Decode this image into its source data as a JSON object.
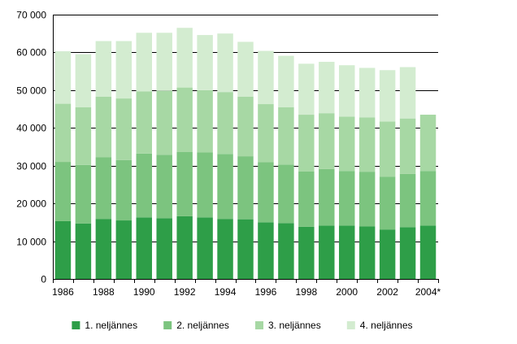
{
  "chart_data": {
    "type": "bar",
    "stacked": true,
    "title": "",
    "xlabel": "",
    "ylabel": "",
    "ylim": [
      0,
      70000
    ],
    "yticks": [
      0,
      10000,
      20000,
      30000,
      40000,
      50000,
      60000,
      70000
    ],
    "ytick_labels": [
      "0",
      "10 000",
      "20 000",
      "30 000",
      "40 000",
      "50 000",
      "60 000",
      "70 000"
    ],
    "grid": "horizontal",
    "legend_position": "bottom",
    "categories": [
      "1986",
      "1987",
      "1988",
      "1989",
      "1990",
      "1991",
      "1992",
      "1993",
      "1994",
      "1995",
      "1996",
      "1997",
      "1998",
      "1999",
      "2000",
      "2001",
      "2002",
      "2003",
      "2004*"
    ],
    "xtick_labels": [
      "1986",
      "",
      "1988",
      "",
      "1990",
      "",
      "1992",
      "",
      "1994",
      "",
      "1996",
      "",
      "1998",
      "",
      "2000",
      "",
      "2002",
      "",
      "2004*"
    ],
    "series": [
      {
        "name": "1. neljännes",
        "color": "#2e9e48",
        "values": [
          15300,
          14700,
          15900,
          15500,
          16300,
          16100,
          16600,
          16300,
          15900,
          15800,
          15000,
          14800,
          13800,
          14100,
          14100,
          13900,
          13100,
          13700,
          14100
        ]
      },
      {
        "name": "2. neljännes",
        "color": "#7cc47f",
        "values": [
          15700,
          15500,
          16300,
          16000,
          16900,
          16800,
          17000,
          17200,
          17200,
          16700,
          15900,
          15500,
          14700,
          15000,
          14500,
          14500,
          14000,
          14100,
          14500
        ]
      },
      {
        "name": "3. neljännes",
        "color": "#a7d8a4",
        "values": [
          15400,
          15300,
          16100,
          16300,
          16500,
          16900,
          17100,
          16500,
          16400,
          15800,
          15400,
          15200,
          15000,
          14800,
          14400,
          14400,
          14600,
          14700,
          14900
        ]
      },
      {
        "name": "4. neljännes",
        "color": "#d3ecd0",
        "values": [
          13900,
          14000,
          14700,
          15200,
          15500,
          15400,
          15800,
          14600,
          15500,
          14500,
          14100,
          13600,
          13500,
          13600,
          13600,
          13100,
          13600,
          13600,
          0
        ]
      }
    ]
  }
}
